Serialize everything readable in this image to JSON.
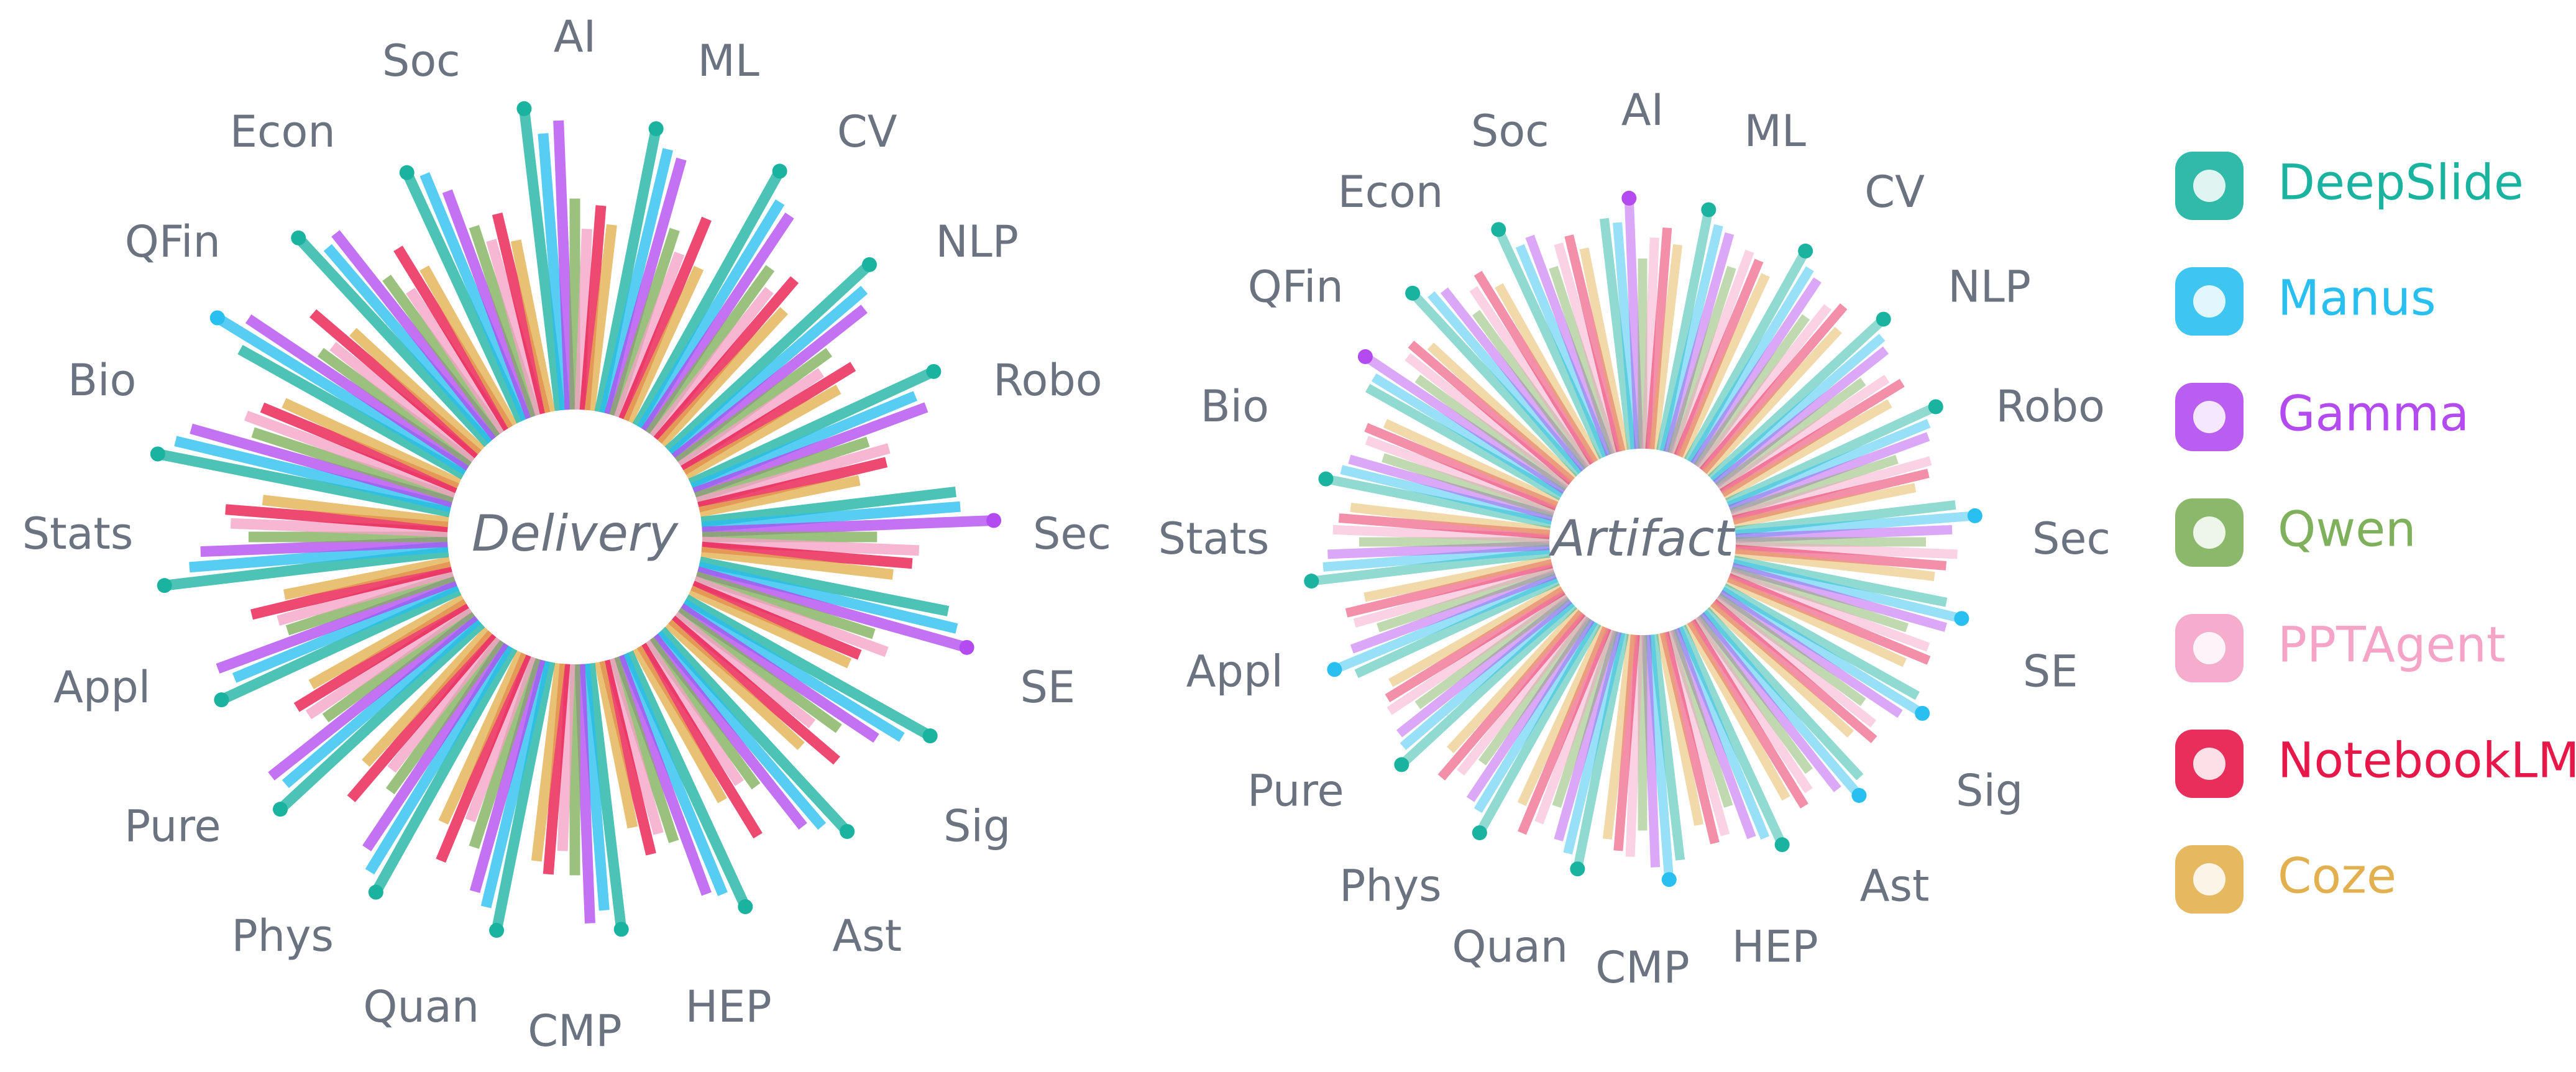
{
  "chart_data": [
    {
      "type": "radial_bar",
      "title": "Delivery",
      "categories": [
        "AI",
        "ML",
        "CV",
        "NLP",
        "Robo",
        "Sec",
        "SE",
        "Sig",
        "Ast",
        "HEP",
        "CMP",
        "Quan",
        "Phys",
        "Pure",
        "Appl",
        "Stats",
        "Bio",
        "QFin",
        "Econ",
        "Soc"
      ],
      "series": [
        {
          "name": "DeepSlide",
          "color": "#1ab3a0",
          "values": [
            100,
            95,
            96,
            90,
            88,
            85,
            84,
            92,
            90,
            92,
            88,
            90,
            92,
            90,
            86,
            94,
            98,
            85,
            92,
            90
          ]
        },
        {
          "name": "Manus",
          "color": "#29bff0",
          "values": [
            92,
            90,
            88,
            84,
            80,
            86,
            88,
            85,
            84,
            86,
            82,
            84,
            88,
            84,
            80,
            86,
            94,
            96,
            84,
            88
          ]
        },
        {
          "name": "Gamma",
          "color": "#b34bf0",
          "values": [
            96,
            88,
            86,
            80,
            82,
            96,
            92,
            78,
            80,
            84,
            86,
            80,
            82,
            86,
            84,
            82,
            90,
            88,
            86,
            80
          ]
        },
        {
          "name": "Qwen",
          "color": "#7fb05c",
          "values": [
            70,
            65,
            68,
            62,
            60,
            58,
            62,
            66,
            60,
            64,
            70,
            66,
            62,
            60,
            58,
            66,
            70,
            62,
            64,
            66
          ]
        },
        {
          "name": "PPTAgent",
          "color": "#f5a3c7",
          "values": [
            60,
            58,
            62,
            56,
            66,
            72,
            68,
            58,
            56,
            60,
            62,
            58,
            56,
            64,
            60,
            72,
            74,
            60,
            56,
            60
          ]
        },
        {
          "name": "NotebookLM",
          "color": "#e8174a",
          "values": [
            68,
            72,
            70,
            66,
            64,
            70,
            60,
            72,
            74,
            66,
            70,
            74,
            72,
            66,
            68,
            74,
            70,
            72,
            70,
            68
          ]
        },
        {
          "name": "Coze",
          "color": "#e3b04f",
          "values": [
            62,
            56,
            60,
            58,
            54,
            64,
            58,
            60,
            58,
            56,
            66,
            62,
            60,
            58,
            56,
            62,
            64,
            58,
            60,
            58
          ]
        }
      ]
    },
    {
      "type": "radial_bar",
      "title": "Artifact",
      "categories": [
        "AI",
        "ML",
        "CV",
        "NLP",
        "Robo",
        "Sec",
        "SE",
        "Sig",
        "Ast",
        "HEP",
        "CMP",
        "Quan",
        "Phys",
        "Pure",
        "Appl",
        "Stats",
        "Bio",
        "QFin",
        "Econ",
        "Soc"
      ],
      "series": [
        {
          "color": "#1ab3a0",
          "values": [
            88,
            92,
            90,
            88,
            86,
            84,
            82,
            84,
            86,
            90,
            86,
            90,
            90,
            88,
            84,
            90,
            86,
            84,
            92,
            94
          ]
        },
        {
          "color": "#29bff0",
          "values": [
            86,
            88,
            86,
            84,
            82,
            90,
            88,
            88,
            90,
            86,
            92,
            86,
            84,
            84,
            90,
            86,
            82,
            84,
            88,
            86
          ]
        },
        {
          "color": "#b34bf0",
          "values": [
            94,
            86,
            84,
            82,
            80,
            82,
            84,
            82,
            84,
            84,
            88,
            82,
            82,
            82,
            82,
            84,
            80,
            90,
            86,
            88
          ]
        },
        {
          "color": "#7fb05c",
          "values": [
            72,
            74,
            70,
            68,
            66,
            72,
            70,
            68,
            72,
            70,
            74,
            70,
            68,
            70,
            70,
            72,
            68,
            70,
            72,
            74
          ]
        },
        {
          "color": "#f5a3c7",
          "values": [
            80,
            82,
            78,
            76,
            78,
            84,
            80,
            76,
            78,
            80,
            84,
            78,
            76,
            80,
            78,
            82,
            76,
            78,
            80,
            82
          ]
        },
        {
          "color": "#e8174a",
          "values": [
            84,
            80,
            82,
            80,
            76,
            80,
            82,
            80,
            82,
            82,
            82,
            84,
            82,
            78,
            80,
            80,
            78,
            80,
            84,
            84
          ]
        },
        {
          "color": "#e3b04f",
          "values": [
            78,
            76,
            74,
            72,
            70,
            76,
            74,
            72,
            76,
            74,
            78,
            74,
            72,
            74,
            72,
            76,
            72,
            74,
            76,
            78
          ]
        }
      ]
    }
  ]
}
